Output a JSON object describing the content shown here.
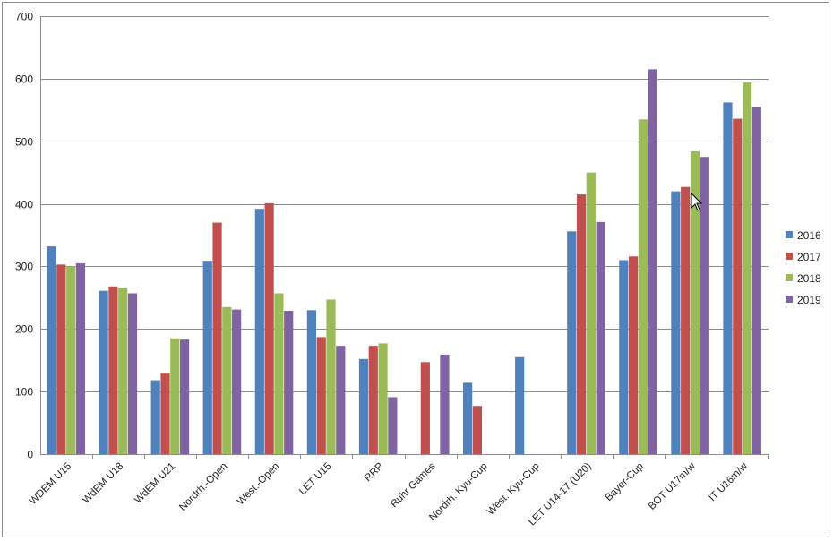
{
  "chart_data": {
    "type": "bar",
    "categories": [
      "WDEM U15",
      "WdEM U18",
      "WdEM U21",
      "Nordrh.-Open",
      "West.-Open",
      "LET U15",
      "RRP",
      "Ruhr Games",
      "Nordrh. Kyu-Cup",
      "West. Kyu-Cup",
      "LET U14-17 (U20)",
      "Bayer-Cup",
      "BOT U17m/w",
      "IT U16m/w"
    ],
    "series": [
      {
        "name": "2016",
        "color": "#4f81bd",
        "values": [
          332,
          261,
          118,
          309,
          392,
          230,
          152,
          null,
          114,
          155,
          356,
          310,
          420,
          562
        ]
      },
      {
        "name": "2017",
        "color": "#c0504d",
        "values": [
          303,
          268,
          130,
          370,
          401,
          187,
          173,
          147,
          77,
          null,
          415,
          316,
          427,
          536
        ]
      },
      {
        "name": "2018",
        "color": "#9bbb59",
        "values": [
          300,
          266,
          185,
          235,
          257,
          247,
          177,
          null,
          null,
          null,
          450,
          535,
          484,
          594
        ]
      },
      {
        "name": "2019",
        "color": "#8064a2",
        "values": [
          305,
          257,
          183,
          231,
          229,
          173,
          91,
          159,
          null,
          null,
          371,
          615,
          475,
          555
        ]
      }
    ],
    "ylim": [
      0,
      700
    ],
    "yticks": [
      0,
      100,
      200,
      300,
      400,
      500,
      600,
      700
    ],
    "grid": true,
    "legend": "right"
  }
}
